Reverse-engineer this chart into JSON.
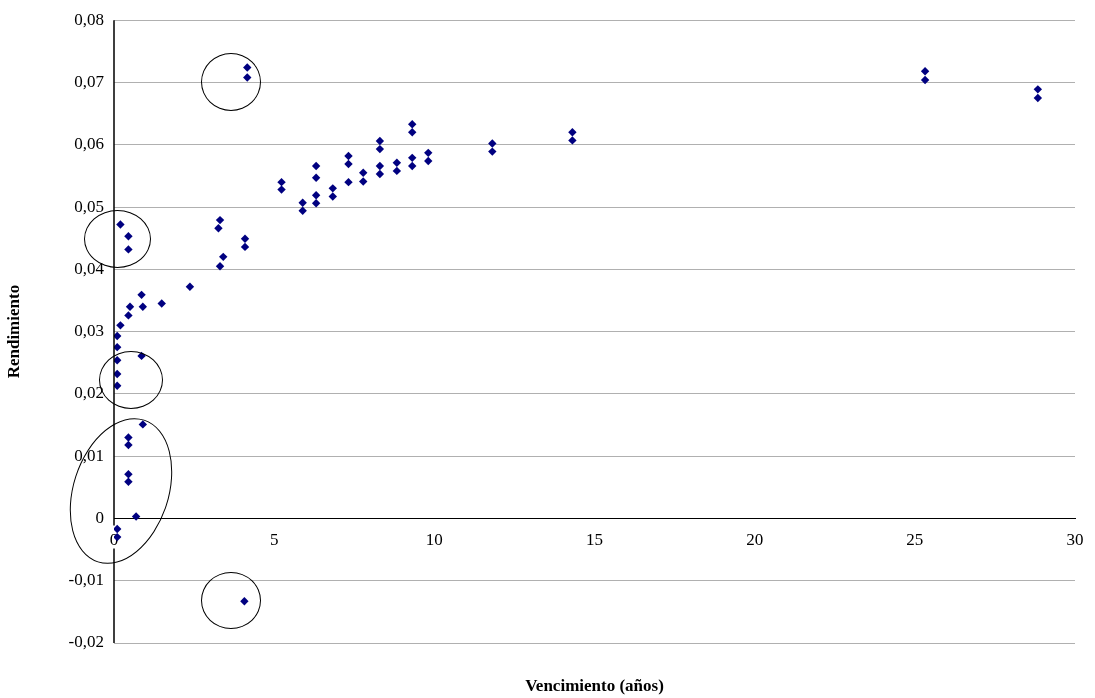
{
  "chart_data": {
    "type": "scatter",
    "xlabel": "Vencimiento (años)",
    "ylabel": "Rendimiento",
    "series": [
      {
        "color": "#000080",
        "x": [
          0.1,
          0.1,
          0.1,
          0.1,
          0.1,
          0.2,
          0.45,
          0.5,
          0.86,
          0.9,
          1.49,
          2.37,
          3.31,
          3.41,
          3.26,
          3.31,
          4.09,
          4.09,
          0.2,
          0.45,
          0.45,
          0.86,
          0.9,
          0.45,
          0.45,
          0.45,
          0.45,
          0.69,
          0.1,
          0.1,
          4.07,
          4.16,
          4.16,
          5.23,
          5.23,
          5.89,
          5.89,
          6.31,
          6.31,
          6.31,
          6.31,
          6.83,
          6.83,
          7.32,
          7.32,
          7.32,
          7.78,
          7.78,
          8.3,
          8.3,
          8.3,
          8.3,
          8.83,
          8.83,
          9.31,
          9.31,
          9.31,
          9.31,
          9.81,
          9.81,
          11.81,
          11.81,
          14.31,
          14.31,
          25.32,
          25.32,
          28.84,
          28.84
        ],
        "values": [
          0.0213,
          0.0232,
          0.0254,
          0.0275,
          0.0293,
          0.031,
          0.0326,
          0.034,
          0.0359,
          0.034,
          0.0345,
          0.0372,
          0.0405,
          0.042,
          0.0466,
          0.0479,
          0.0449,
          0.0436,
          0.0472,
          0.0453,
          0.0432,
          0.0261,
          0.0151,
          0.013,
          0.0118,
          0.0071,
          0.0059,
          0.0003,
          -0.0017,
          -0.003,
          -0.0133,
          0.0724,
          0.0708,
          0.054,
          0.0528,
          0.0507,
          0.0494,
          0.0566,
          0.0547,
          0.0519,
          0.0506,
          0.053,
          0.0517,
          0.0582,
          0.0569,
          0.054,
          0.0555,
          0.0541,
          0.0606,
          0.0593,
          0.0566,
          0.0553,
          0.0571,
          0.0558,
          0.0633,
          0.062,
          0.0579,
          0.0566,
          0.0587,
          0.0574,
          0.0602,
          0.0589,
          0.062,
          0.0607,
          0.0718,
          0.0704,
          0.0689,
          0.0675
        ]
      }
    ],
    "xlim": [
      0,
      30
    ],
    "xticks": [
      0,
      5,
      10,
      15,
      20,
      25,
      30
    ],
    "ylim": [
      -0.02,
      0.08
    ],
    "yticks": [
      {
        "value": -0.02,
        "label": "-0,02"
      },
      {
        "value": -0.01,
        "label": "-0,01"
      },
      {
        "value": 0,
        "label": "0"
      },
      {
        "value": 0.01,
        "label": "0,01"
      },
      {
        "value": 0.02,
        "label": "0,02"
      },
      {
        "value": 0.03,
        "label": "0,03"
      },
      {
        "value": 0.04,
        "label": "0,04"
      },
      {
        "value": 0.05,
        "label": "0,05"
      },
      {
        "value": 0.06,
        "label": "0,06"
      },
      {
        "value": 0.07,
        "label": "0,07"
      },
      {
        "value": 0.08,
        "label": "0,08"
      }
    ],
    "grid": "y",
    "marker": "diamond",
    "legend": false
  }
}
